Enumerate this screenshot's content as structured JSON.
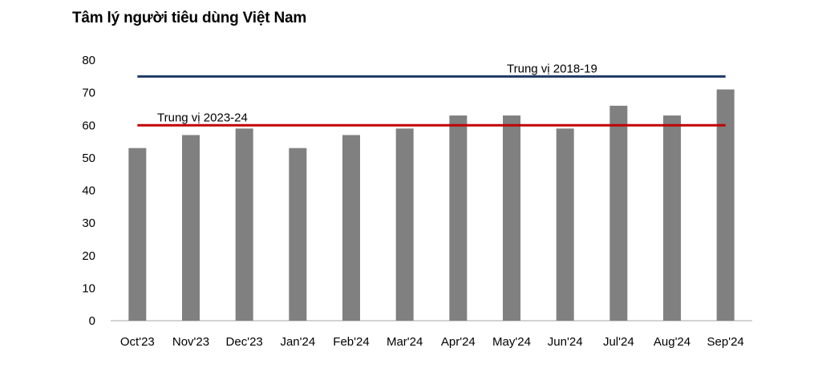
{
  "chart_data": {
    "type": "bar",
    "title": "Tâm lý người tiêu dùng Việt Nam",
    "xlabel": "",
    "ylabel": "",
    "categories": [
      "Oct'23",
      "Nov'23",
      "Dec'23",
      "Jan'24",
      "Feb'24",
      "Mar'24",
      "Apr'24",
      "May'24",
      "Jun'24",
      "Jul'24",
      "Aug'24",
      "Sep'24"
    ],
    "values": [
      53,
      57,
      59,
      53,
      57,
      59,
      63,
      63,
      59,
      66,
      63,
      71
    ],
    "ylim": [
      0,
      80
    ],
    "yticks": [
      0,
      10,
      20,
      30,
      40,
      50,
      60,
      70,
      80
    ],
    "grid": false,
    "legend": "none",
    "bar_color": "#808080",
    "reference_lines": [
      {
        "label": "Trung vị 2018-19",
        "value": 75,
        "color": "#1f3864"
      },
      {
        "label": "Trung vị 2023-24",
        "value": 60,
        "color": "#c00000"
      }
    ]
  }
}
